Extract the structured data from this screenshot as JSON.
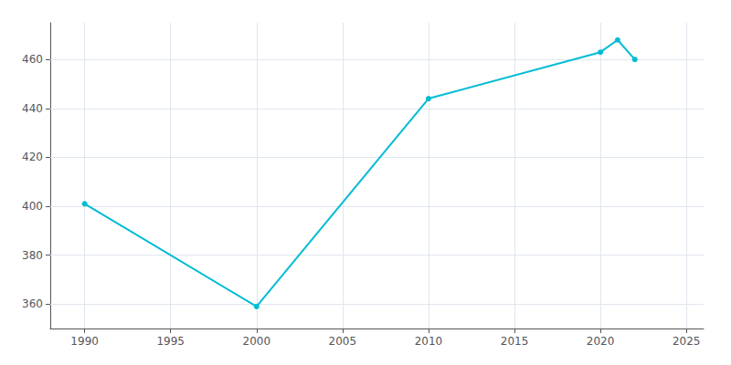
{
  "chart_data": {
    "type": "line",
    "x": [
      1990,
      2000,
      2010,
      2020,
      2021,
      2022
    ],
    "values": [
      401,
      359,
      444,
      463,
      468,
      460
    ],
    "color": "#00bcd4",
    "marker": "circle",
    "xlim": [
      1988,
      2026
    ],
    "ylim": [
      350,
      475
    ],
    "xticks": [
      1990,
      1995,
      2000,
      2005,
      2010,
      2015,
      2020,
      2025
    ],
    "yticks": [
      360,
      380,
      400,
      420,
      440,
      460
    ],
    "grid": true
  }
}
